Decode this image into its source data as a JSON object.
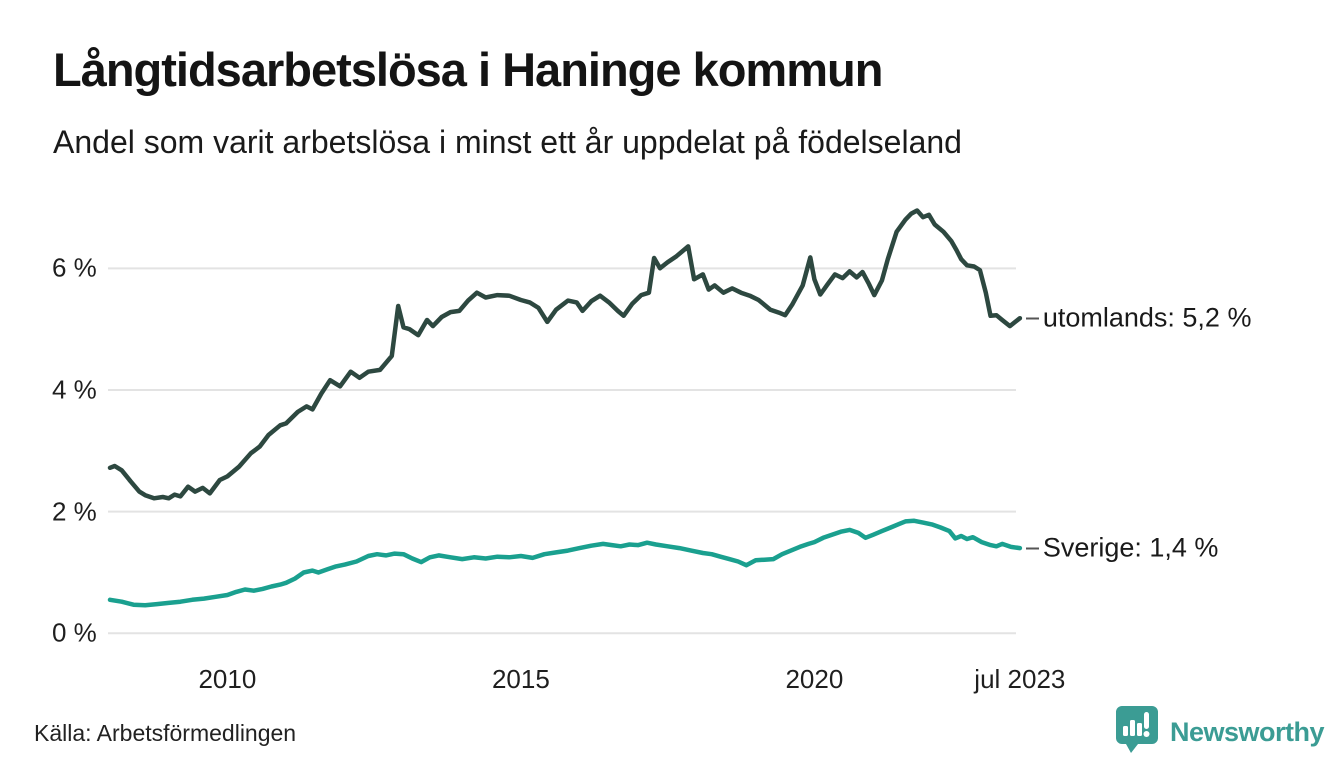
{
  "header": {
    "title": "Långtidsarbetslösa i Haninge kommun",
    "subtitle": "Andel som varit arbetslösa i minst ett år uppdelat på födelseland"
  },
  "footer": {
    "source": "Källa: Arbetsförmedlingen",
    "brand_name": "Newsworthy"
  },
  "colors": {
    "series_utomlands": "#2d4840",
    "series_sverige": "#1aa08f",
    "gridline": "#e3e3e3",
    "label_dash": "#555555",
    "brand_teal": "#3b9c94",
    "text": "#1a1a1a"
  },
  "chart_data": {
    "type": "line",
    "title": "Långtidsarbetslösa i Haninge kommun",
    "subtitle": "Andel som varit arbetslösa i minst ett år uppdelat på födelseland",
    "xlabel": "",
    "ylabel": "",
    "x_range_years": [
      2008.0,
      2023.58
    ],
    "ylim": [
      0,
      7.3
    ],
    "grid": true,
    "legend_position": "right-end-labels",
    "y_axis": {
      "ticks": [
        {
          "label": "0 %",
          "value": 0
        },
        {
          "label": "2 %",
          "value": 2
        },
        {
          "label": "4 %",
          "value": 4
        },
        {
          "label": "6 %",
          "value": 6
        }
      ]
    },
    "x_axis": {
      "ticks": [
        {
          "label": "2010",
          "year": 2010
        },
        {
          "label": "2015",
          "year": 2015
        },
        {
          "label": "2020",
          "year": 2020
        },
        {
          "label": "jul 2023",
          "year": 2023.5
        }
      ]
    },
    "series": [
      {
        "name": "utomlands",
        "end_label": "utomlands: 5,2 %",
        "last_value_text": "5,2 %",
        "color": "#2d4840",
        "points": [
          [
            2008.0,
            2.72
          ],
          [
            2008.08,
            2.75
          ],
          [
            2008.2,
            2.68
          ],
          [
            2008.35,
            2.5
          ],
          [
            2008.5,
            2.33
          ],
          [
            2008.6,
            2.27
          ],
          [
            2008.75,
            2.22
          ],
          [
            2008.9,
            2.24
          ],
          [
            2009.0,
            2.22
          ],
          [
            2009.1,
            2.28
          ],
          [
            2009.2,
            2.25
          ],
          [
            2009.33,
            2.41
          ],
          [
            2009.45,
            2.33
          ],
          [
            2009.58,
            2.39
          ],
          [
            2009.7,
            2.3
          ],
          [
            2009.87,
            2.52
          ],
          [
            2010.0,
            2.58
          ],
          [
            2010.2,
            2.74
          ],
          [
            2010.4,
            2.96
          ],
          [
            2010.55,
            3.07
          ],
          [
            2010.7,
            3.26
          ],
          [
            2010.9,
            3.42
          ],
          [
            2011.0,
            3.45
          ],
          [
            2011.2,
            3.64
          ],
          [
            2011.35,
            3.73
          ],
          [
            2011.45,
            3.68
          ],
          [
            2011.6,
            3.94
          ],
          [
            2011.75,
            4.16
          ],
          [
            2011.92,
            4.06
          ],
          [
            2012.1,
            4.3
          ],
          [
            2012.25,
            4.2
          ],
          [
            2012.4,
            4.3
          ],
          [
            2012.6,
            4.33
          ],
          [
            2012.8,
            4.56
          ],
          [
            2012.91,
            5.38
          ],
          [
            2013.0,
            5.03
          ],
          [
            2013.1,
            5.0
          ],
          [
            2013.25,
            4.9
          ],
          [
            2013.4,
            5.15
          ],
          [
            2013.5,
            5.05
          ],
          [
            2013.65,
            5.2
          ],
          [
            2013.8,
            5.28
          ],
          [
            2013.95,
            5.3
          ],
          [
            2014.1,
            5.47
          ],
          [
            2014.25,
            5.6
          ],
          [
            2014.4,
            5.52
          ],
          [
            2014.6,
            5.56
          ],
          [
            2014.8,
            5.55
          ],
          [
            2015.0,
            5.48
          ],
          [
            2015.15,
            5.44
          ],
          [
            2015.3,
            5.35
          ],
          [
            2015.45,
            5.12
          ],
          [
            2015.6,
            5.32
          ],
          [
            2015.8,
            5.47
          ],
          [
            2015.95,
            5.44
          ],
          [
            2016.05,
            5.3
          ],
          [
            2016.2,
            5.46
          ],
          [
            2016.35,
            5.55
          ],
          [
            2016.5,
            5.44
          ],
          [
            2016.65,
            5.3
          ],
          [
            2016.75,
            5.22
          ],
          [
            2016.9,
            5.42
          ],
          [
            2017.05,
            5.56
          ],
          [
            2017.18,
            5.6
          ],
          [
            2017.27,
            6.17
          ],
          [
            2017.37,
            6.0
          ],
          [
            2017.5,
            6.1
          ],
          [
            2017.65,
            6.2
          ],
          [
            2017.85,
            6.36
          ],
          [
            2017.95,
            5.82
          ],
          [
            2018.1,
            5.9
          ],
          [
            2018.2,
            5.65
          ],
          [
            2018.3,
            5.72
          ],
          [
            2018.45,
            5.6
          ],
          [
            2018.6,
            5.67
          ],
          [
            2018.75,
            5.6
          ],
          [
            2018.9,
            5.55
          ],
          [
            2019.05,
            5.48
          ],
          [
            2019.25,
            5.32
          ],
          [
            2019.4,
            5.27
          ],
          [
            2019.5,
            5.23
          ],
          [
            2019.62,
            5.4
          ],
          [
            2019.8,
            5.72
          ],
          [
            2019.93,
            6.18
          ],
          [
            2020.0,
            5.82
          ],
          [
            2020.1,
            5.57
          ],
          [
            2020.22,
            5.73
          ],
          [
            2020.35,
            5.9
          ],
          [
            2020.48,
            5.84
          ],
          [
            2020.6,
            5.95
          ],
          [
            2020.72,
            5.85
          ],
          [
            2020.82,
            5.94
          ],
          [
            2020.93,
            5.74
          ],
          [
            2021.02,
            5.56
          ],
          [
            2021.15,
            5.8
          ],
          [
            2021.25,
            6.15
          ],
          [
            2021.4,
            6.6
          ],
          [
            2021.55,
            6.8
          ],
          [
            2021.65,
            6.9
          ],
          [
            2021.75,
            6.95
          ],
          [
            2021.85,
            6.84
          ],
          [
            2021.95,
            6.88
          ],
          [
            2022.05,
            6.72
          ],
          [
            2022.2,
            6.6
          ],
          [
            2022.33,
            6.45
          ],
          [
            2022.42,
            6.3
          ],
          [
            2022.5,
            6.15
          ],
          [
            2022.6,
            6.05
          ],
          [
            2022.72,
            6.03
          ],
          [
            2022.82,
            5.97
          ],
          [
            2022.92,
            5.6
          ],
          [
            2023.0,
            5.22
          ],
          [
            2023.1,
            5.23
          ],
          [
            2023.2,
            5.15
          ],
          [
            2023.33,
            5.05
          ],
          [
            2023.42,
            5.12
          ],
          [
            2023.5,
            5.18
          ]
        ]
      },
      {
        "name": "Sverige",
        "end_label": "Sverige: 1,4 %",
        "last_value_text": "1,4 %",
        "color": "#1aa08f",
        "points": [
          [
            2008.0,
            0.55
          ],
          [
            2008.2,
            0.52
          ],
          [
            2008.4,
            0.47
          ],
          [
            2008.6,
            0.46
          ],
          [
            2008.8,
            0.48
          ],
          [
            2009.0,
            0.5
          ],
          [
            2009.2,
            0.52
          ],
          [
            2009.4,
            0.55
          ],
          [
            2009.6,
            0.57
          ],
          [
            2009.8,
            0.6
          ],
          [
            2010.0,
            0.63
          ],
          [
            2010.15,
            0.68
          ],
          [
            2010.3,
            0.72
          ],
          [
            2010.45,
            0.7
          ],
          [
            2010.6,
            0.73
          ],
          [
            2010.75,
            0.77
          ],
          [
            2010.9,
            0.8
          ],
          [
            2011.0,
            0.83
          ],
          [
            2011.15,
            0.9
          ],
          [
            2011.3,
            1.0
          ],
          [
            2011.45,
            1.03
          ],
          [
            2011.55,
            1.0
          ],
          [
            2011.7,
            1.05
          ],
          [
            2011.85,
            1.1
          ],
          [
            2012.0,
            1.13
          ],
          [
            2012.2,
            1.18
          ],
          [
            2012.4,
            1.27
          ],
          [
            2012.55,
            1.3
          ],
          [
            2012.7,
            1.28
          ],
          [
            2012.85,
            1.31
          ],
          [
            2013.0,
            1.3
          ],
          [
            2013.15,
            1.23
          ],
          [
            2013.3,
            1.17
          ],
          [
            2013.45,
            1.25
          ],
          [
            2013.6,
            1.28
          ],
          [
            2013.8,
            1.25
          ],
          [
            2014.0,
            1.22
          ],
          [
            2014.2,
            1.25
          ],
          [
            2014.4,
            1.23
          ],
          [
            2014.6,
            1.26
          ],
          [
            2014.8,
            1.25
          ],
          [
            2015.0,
            1.27
          ],
          [
            2015.2,
            1.24
          ],
          [
            2015.4,
            1.3
          ],
          [
            2015.6,
            1.33
          ],
          [
            2015.8,
            1.36
          ],
          [
            2016.0,
            1.4
          ],
          [
            2016.2,
            1.44
          ],
          [
            2016.4,
            1.47
          ],
          [
            2016.55,
            1.45
          ],
          [
            2016.7,
            1.43
          ],
          [
            2016.85,
            1.46
          ],
          [
            2017.0,
            1.45
          ],
          [
            2017.15,
            1.49
          ],
          [
            2017.3,
            1.46
          ],
          [
            2017.5,
            1.43
          ],
          [
            2017.7,
            1.4
          ],
          [
            2017.9,
            1.36
          ],
          [
            2018.1,
            1.32
          ],
          [
            2018.25,
            1.3
          ],
          [
            2018.4,
            1.26
          ],
          [
            2018.55,
            1.22
          ],
          [
            2018.7,
            1.18
          ],
          [
            2018.84,
            1.12
          ],
          [
            2019.0,
            1.2
          ],
          [
            2019.15,
            1.21
          ],
          [
            2019.3,
            1.22
          ],
          [
            2019.45,
            1.3
          ],
          [
            2019.6,
            1.36
          ],
          [
            2019.75,
            1.42
          ],
          [
            2019.9,
            1.47
          ],
          [
            2020.0,
            1.5
          ],
          [
            2020.15,
            1.57
          ],
          [
            2020.3,
            1.62
          ],
          [
            2020.45,
            1.67
          ],
          [
            2020.6,
            1.7
          ],
          [
            2020.75,
            1.65
          ],
          [
            2020.87,
            1.57
          ],
          [
            2021.0,
            1.62
          ],
          [
            2021.15,
            1.68
          ],
          [
            2021.3,
            1.74
          ],
          [
            2021.45,
            1.8
          ],
          [
            2021.55,
            1.84
          ],
          [
            2021.7,
            1.85
          ],
          [
            2021.85,
            1.82
          ],
          [
            2022.0,
            1.79
          ],
          [
            2022.15,
            1.74
          ],
          [
            2022.3,
            1.68
          ],
          [
            2022.4,
            1.56
          ],
          [
            2022.5,
            1.6
          ],
          [
            2022.6,
            1.55
          ],
          [
            2022.7,
            1.58
          ],
          [
            2022.85,
            1.5
          ],
          [
            2023.0,
            1.45
          ],
          [
            2023.1,
            1.43
          ],
          [
            2023.2,
            1.47
          ],
          [
            2023.35,
            1.42
          ],
          [
            2023.5,
            1.4
          ]
        ]
      }
    ]
  }
}
